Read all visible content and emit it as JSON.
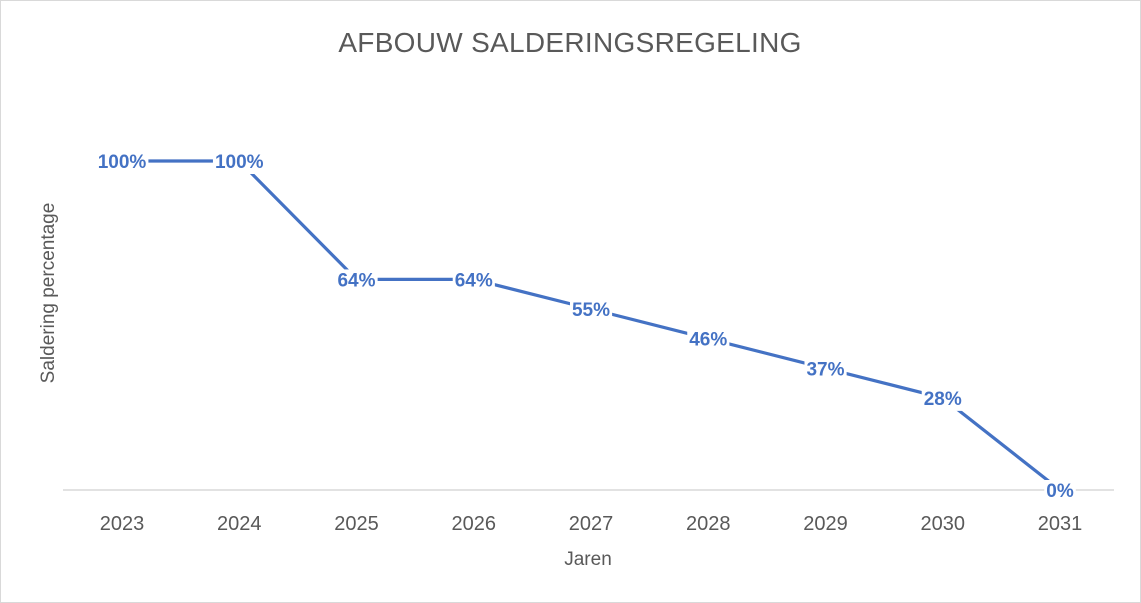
{
  "chart_data": {
    "type": "line",
    "title": "AFBOUW SALDERINGSREGELING",
    "xlabel": "Jaren",
    "ylabel": "Saldering percentage",
    "categories": [
      "2023",
      "2024",
      "2025",
      "2026",
      "2027",
      "2028",
      "2029",
      "2030",
      "2031"
    ],
    "values": [
      100,
      100,
      64,
      64,
      55,
      46,
      37,
      28,
      0
    ],
    "data_labels": [
      "100%",
      "100%",
      "64%",
      "64%",
      "55%",
      "46%",
      "37%",
      "28%",
      "0%"
    ],
    "ylim": [
      0,
      100
    ],
    "grid": false,
    "legend": "none",
    "colors": {
      "series": "#4472c4",
      "text": "#595959",
      "axis": "#d9d9d9"
    }
  }
}
